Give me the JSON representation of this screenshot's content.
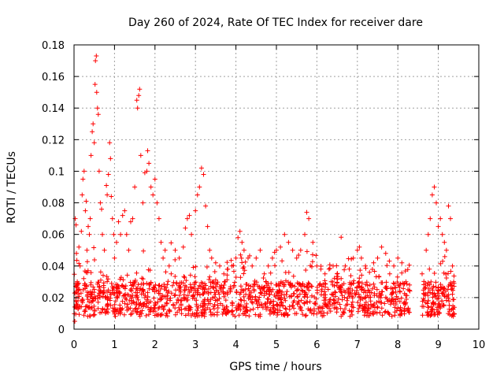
{
  "chart_data": {
    "type": "scatter",
    "title": "Day 260 of 2024, Rate Of TEC Index for receiver dare",
    "xlabel": "GPS time / hours",
    "ylabel": "ROTI / TECUs",
    "xlim": [
      0,
      10
    ],
    "ylim": [
      0,
      0.18
    ],
    "x_ticks": [
      0,
      1,
      2,
      3,
      4,
      5,
      6,
      7,
      8,
      9,
      10
    ],
    "x_tick_labels": [
      "0",
      "1",
      "2",
      "3",
      "4",
      "5",
      "6",
      "7",
      "8",
      "9",
      "10"
    ],
    "y_ticks": [
      0,
      0.02,
      0.04,
      0.06,
      0.08,
      0.1,
      0.12,
      0.14,
      0.16,
      0.18
    ],
    "y_tick_labels": [
      "0",
      "0.02",
      "0.04",
      "0.06",
      "0.08",
      "0.1",
      "0.12",
      "0.14",
      "0.16",
      "0.18"
    ],
    "grid": true,
    "marker": "+",
    "color": "#ff0000",
    "data_gap_hours": [
      8.3,
      8.6
    ],
    "series": [
      {
        "name": "ROTI",
        "points": [
          [
            0.02,
            0.005
          ],
          [
            0.03,
            0.07
          ],
          [
            0.05,
            0.066
          ],
          [
            0.06,
            0.048
          ],
          [
            0.08,
            0.03
          ],
          [
            0.1,
            0.018
          ],
          [
            0.12,
            0.052
          ],
          [
            0.15,
            0.04
          ],
          [
            0.18,
            0.062
          ],
          [
            0.2,
            0.085
          ],
          [
            0.22,
            0.095
          ],
          [
            0.25,
            0.1
          ],
          [
            0.28,
            0.075
          ],
          [
            0.3,
            0.081
          ],
          [
            0.32,
            0.05
          ],
          [
            0.35,
            0.065
          ],
          [
            0.38,
            0.06
          ],
          [
            0.4,
            0.07
          ],
          [
            0.42,
            0.11
          ],
          [
            0.45,
            0.125
          ],
          [
            0.47,
            0.13
          ],
          [
            0.5,
            0.118
          ],
          [
            0.52,
            0.155
          ],
          [
            0.53,
            0.17
          ],
          [
            0.55,
            0.173
          ],
          [
            0.56,
            0.15
          ],
          [
            0.58,
            0.14
          ],
          [
            0.6,
            0.136
          ],
          [
            0.62,
            0.1
          ],
          [
            0.65,
            0.08
          ],
          [
            0.68,
            0.076
          ],
          [
            0.7,
            0.06
          ],
          [
            0.75,
            0.05
          ],
          [
            0.8,
            0.091
          ],
          [
            0.82,
            0.085
          ],
          [
            0.85,
            0.098
          ],
          [
            0.88,
            0.118
          ],
          [
            0.9,
            0.108
          ],
          [
            0.92,
            0.084
          ],
          [
            0.95,
            0.07
          ],
          [
            0.98,
            0.06
          ],
          [
            1.0,
            0.045
          ],
          [
            1.05,
            0.055
          ],
          [
            1.1,
            0.068
          ],
          [
            1.15,
            0.06
          ],
          [
            1.2,
            0.072
          ],
          [
            1.25,
            0.075
          ],
          [
            1.3,
            0.06
          ],
          [
            1.35,
            0.05
          ],
          [
            1.4,
            0.068
          ],
          [
            1.45,
            0.07
          ],
          [
            1.5,
            0.09
          ],
          [
            1.55,
            0.145
          ],
          [
            1.57,
            0.14
          ],
          [
            1.6,
            0.148
          ],
          [
            1.62,
            0.152
          ],
          [
            1.65,
            0.11
          ],
          [
            1.7,
            0.08
          ],
          [
            1.75,
            0.099
          ],
          [
            1.8,
            0.1
          ],
          [
            1.82,
            0.113
          ],
          [
            1.85,
            0.105
          ],
          [
            1.9,
            0.09
          ],
          [
            1.95,
            0.085
          ],
          [
            2.0,
            0.095
          ],
          [
            2.05,
            0.08
          ],
          [
            2.1,
            0.07
          ],
          [
            2.15,
            0.055
          ],
          [
            2.2,
            0.045
          ],
          [
            2.25,
            0.05
          ],
          [
            2.35,
            0.04
          ],
          [
            2.4,
            0.035
          ],
          [
            2.5,
            0.05
          ],
          [
            2.6,
            0.045
          ],
          [
            2.7,
            0.052
          ],
          [
            2.75,
            0.064
          ],
          [
            2.8,
            0.07
          ],
          [
            2.85,
            0.072
          ],
          [
            2.9,
            0.06
          ],
          [
            3.0,
            0.075
          ],
          [
            3.05,
            0.085
          ],
          [
            3.1,
            0.09
          ],
          [
            3.15,
            0.102
          ],
          [
            3.2,
            0.098
          ],
          [
            3.25,
            0.078
          ],
          [
            3.3,
            0.065
          ],
          [
            3.35,
            0.05
          ],
          [
            3.4,
            0.045
          ],
          [
            3.5,
            0.042
          ],
          [
            3.6,
            0.04
          ],
          [
            3.7,
            0.035
          ],
          [
            3.8,
            0.038
          ],
          [
            3.9,
            0.04
          ],
          [
            4.0,
            0.045
          ],
          [
            4.05,
            0.058
          ],
          [
            4.1,
            0.062
          ],
          [
            4.15,
            0.055
          ],
          [
            4.2,
            0.05
          ],
          [
            4.3,
            0.045
          ],
          [
            4.4,
            0.04
          ],
          [
            4.5,
            0.045
          ],
          [
            4.6,
            0.05
          ],
          [
            4.7,
            0.035
          ],
          [
            4.8,
            0.04
          ],
          [
            4.9,
            0.045
          ],
          [
            5.0,
            0.05
          ],
          [
            5.1,
            0.052
          ],
          [
            5.2,
            0.06
          ],
          [
            5.3,
            0.055
          ],
          [
            5.4,
            0.05
          ],
          [
            5.5,
            0.045
          ],
          [
            5.6,
            0.05
          ],
          [
            5.7,
            0.06
          ],
          [
            5.75,
            0.074
          ],
          [
            5.8,
            0.07
          ],
          [
            5.9,
            0.055
          ],
          [
            6.0,
            0.04
          ],
          [
            6.1,
            0.038
          ],
          [
            6.2,
            0.035
          ],
          [
            6.3,
            0.038
          ],
          [
            6.4,
            0.04
          ],
          [
            6.5,
            0.035
          ],
          [
            6.6,
            0.032
          ],
          [
            6.7,
            0.04
          ],
          [
            6.8,
            0.038
          ],
          [
            6.9,
            0.045
          ],
          [
            7.0,
            0.05
          ],
          [
            7.05,
            0.052
          ],
          [
            7.1,
            0.045
          ],
          [
            7.2,
            0.04
          ],
          [
            7.3,
            0.036
          ],
          [
            7.4,
            0.042
          ],
          [
            7.5,
            0.045
          ],
          [
            7.6,
            0.052
          ],
          [
            7.7,
            0.048
          ],
          [
            7.8,
            0.035
          ],
          [
            7.9,
            0.04
          ],
          [
            8.0,
            0.045
          ],
          [
            8.1,
            0.042
          ],
          [
            8.2,
            0.03
          ],
          [
            8.25,
            0.025
          ],
          [
            8.6,
            0.035
          ],
          [
            8.7,
            0.05
          ],
          [
            8.75,
            0.06
          ],
          [
            8.8,
            0.07
          ],
          [
            8.85,
            0.085
          ],
          [
            8.9,
            0.09
          ],
          [
            8.95,
            0.08
          ],
          [
            9.0,
            0.065
          ],
          [
            9.05,
            0.07
          ],
          [
            9.1,
            0.06
          ],
          [
            9.15,
            0.055
          ],
          [
            9.2,
            0.05
          ],
          [
            9.25,
            0.078
          ],
          [
            9.3,
            0.07
          ],
          [
            9.35,
            0.04
          ],
          [
            9.38,
            0.03
          ]
        ]
      }
    ]
  }
}
